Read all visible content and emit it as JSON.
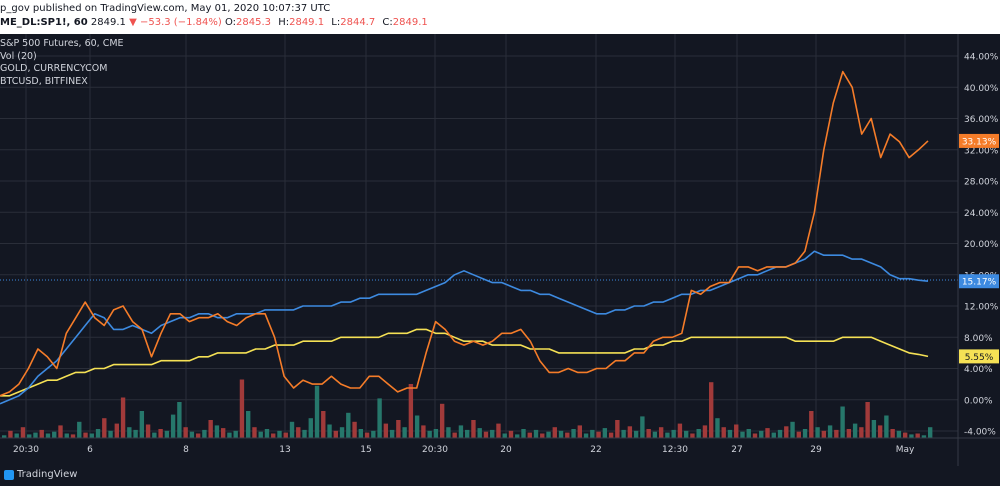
{
  "header": {
    "publisher_line": "p_gov published on TradingView.com, May 01, 2020 10:07:37 UTC",
    "symbol": "ME_DL:SP1!, 60",
    "last": "2849.1",
    "change_arrow": "▼",
    "change": "−53.3 (−1.84%)",
    "open_label": "O:",
    "open": "2845.3",
    "high_label": "H:",
    "high": "2849.1",
    "low_label": "L:",
    "low": "2844.7",
    "close_label": "C:",
    "close": "2849.1"
  },
  "legend": {
    "items": [
      "S&P 500 Futures, 60, CME",
      "Vol (20)",
      "GOLD, CURRENCYCOM",
      "BTCUSD, BITFINEX"
    ]
  },
  "footer": {
    "brand": "TradingView"
  },
  "colors": {
    "background": "#131722",
    "grid": "#2a2e39",
    "text": "#d1d4dc",
    "btc": "#f57c29",
    "sp500": "#3d8ae0",
    "gold": "#f5e155",
    "vol_up": "#26776b",
    "vol_down": "#a13a3a"
  },
  "chart_data": {
    "type": "line",
    "y_axis": {
      "ticks": [
        "44.00%",
        "40.00%",
        "36.00%",
        "32.00%",
        "28.00%",
        "24.00%",
        "20.00%",
        "16.00%",
        "12.00%",
        "8.00%",
        "4.00%",
        "0.00%",
        "-4.00%"
      ],
      "range_pct": [
        -5,
        46
      ]
    },
    "x_axis": {
      "ticks": [
        "20:30",
        "6",
        "8",
        "13",
        "15",
        "20:30",
        "20",
        "22",
        "12:30",
        "27",
        "29",
        "May"
      ]
    },
    "price_labels": {
      "btc": "33.13%",
      "sp500": "15.17%",
      "gold": "5.55%"
    },
    "series": [
      {
        "key": "btc",
        "pct": [
          0.5,
          1,
          2,
          4,
          6.5,
          5.5,
          4,
          8.5,
          10.5,
          12.5,
          10.5,
          9.5,
          11.5,
          12,
          10,
          9,
          5.5,
          8.5,
          11,
          11,
          10,
          10.5,
          10.5,
          11,
          10,
          9.5,
          10.5,
          11,
          11,
          8,
          3,
          1.5,
          2.5,
          2,
          2,
          3,
          2,
          1.5,
          1.5,
          3,
          3,
          2,
          1,
          1.5,
          1.5,
          6,
          10,
          9,
          7.5,
          7,
          7.5,
          7,
          7.5,
          8.5,
          8.5,
          9,
          7.5,
          5,
          3.5,
          3.5,
          4,
          3.5,
          3.5,
          4,
          4,
          5,
          5,
          6,
          6,
          7.5,
          8,
          8,
          8.5,
          14,
          13.5,
          14.5,
          15,
          15,
          17,
          17,
          16.5,
          17,
          17,
          17,
          17.5,
          19,
          24,
          32,
          38,
          42,
          40,
          34,
          36,
          31,
          34,
          33,
          31,
          32,
          33.13
        ]
      },
      {
        "key": "sp500",
        "pct": [
          -0.5,
          0,
          0.5,
          1.5,
          3,
          4,
          5,
          6.5,
          8,
          9.5,
          11,
          10.5,
          9,
          9,
          9.5,
          9,
          8.5,
          9.5,
          10,
          10.5,
          10.5,
          11,
          11,
          10.5,
          10.5,
          11,
          11,
          11,
          11.5,
          11.5,
          11.5,
          11.5,
          12,
          12,
          12,
          12,
          12.5,
          12.5,
          13,
          13,
          13.5,
          13.5,
          13.5,
          13.5,
          13.5,
          14,
          14.5,
          15,
          16,
          16.5,
          16,
          15.5,
          15,
          15,
          14.5,
          14,
          14,
          13.5,
          13.5,
          13,
          12.5,
          12,
          11.5,
          11,
          11,
          11.5,
          11.5,
          12,
          12,
          12.5,
          12.5,
          13,
          13.5,
          13.5,
          14,
          14,
          14.5,
          15,
          15.5,
          16,
          16,
          16.5,
          17,
          17,
          17.5,
          18,
          19,
          18.5,
          18.5,
          18.5,
          18,
          18,
          17.5,
          17,
          16,
          15.5,
          15.5,
          15.3,
          15.17
        ]
      },
      {
        "key": "gold",
        "pct": [
          0.5,
          0.5,
          1,
          1.5,
          2,
          2.5,
          2.5,
          3,
          3.5,
          3.5,
          4,
          4,
          4.5,
          4.5,
          4.5,
          4.5,
          4.5,
          5,
          5,
          5,
          5,
          5.5,
          5.5,
          6,
          6,
          6,
          6,
          6.5,
          6.5,
          7,
          7,
          7,
          7.5,
          7.5,
          7.5,
          7.5,
          8,
          8,
          8,
          8,
          8,
          8.5,
          8.5,
          8.5,
          9,
          9,
          8.5,
          8.5,
          8,
          7.5,
          7.5,
          7.5,
          7,
          7,
          7,
          7,
          6.5,
          6.5,
          6.5,
          6,
          6,
          6,
          6,
          6,
          6,
          6,
          6,
          6.5,
          6.5,
          7,
          7,
          7.5,
          7.5,
          8,
          8,
          8,
          8,
          8,
          8,
          8,
          8,
          8,
          8,
          8,
          7.5,
          7.5,
          7.5,
          7.5,
          7.5,
          8,
          8,
          8,
          8,
          7.5,
          7,
          6.5,
          6,
          5.8,
          5.55
        ]
      }
    ],
    "volume": [
      {
        "h": 3,
        "up": true
      },
      {
        "h": 8,
        "up": false
      },
      {
        "h": 5,
        "up": true
      },
      {
        "h": 12,
        "up": false
      },
      {
        "h": 4,
        "up": true
      },
      {
        "h": 6,
        "up": true
      },
      {
        "h": 9,
        "up": false
      },
      {
        "h": 5,
        "up": true
      },
      {
        "h": 7,
        "up": true
      },
      {
        "h": 14,
        "up": false
      },
      {
        "h": 5,
        "up": true
      },
      {
        "h": 4,
        "up": false
      },
      {
        "h": 18,
        "up": true
      },
      {
        "h": 6,
        "up": false
      },
      {
        "h": 5,
        "up": true
      },
      {
        "h": 10,
        "up": true
      },
      {
        "h": 22,
        "up": false
      },
      {
        "h": 8,
        "up": true
      },
      {
        "h": 16,
        "up": false
      },
      {
        "h": 45,
        "up": false
      },
      {
        "h": 12,
        "up": true
      },
      {
        "h": 9,
        "up": true
      },
      {
        "h": 30,
        "up": true
      },
      {
        "h": 15,
        "up": false
      },
      {
        "h": 6,
        "up": true
      },
      {
        "h": 10,
        "up": false
      },
      {
        "h": 8,
        "up": true
      },
      {
        "h": 26,
        "up": true
      },
      {
        "h": 40,
        "up": true
      },
      {
        "h": 12,
        "up": false
      },
      {
        "h": 7,
        "up": true
      },
      {
        "h": 5,
        "up": false
      },
      {
        "h": 9,
        "up": true
      },
      {
        "h": 20,
        "up": false
      },
      {
        "h": 14,
        "up": true
      },
      {
        "h": 11,
        "up": false
      },
      {
        "h": 6,
        "up": true
      },
      {
        "h": 8,
        "up": true
      },
      {
        "h": 65,
        "up": false
      },
      {
        "h": 30,
        "up": true
      },
      {
        "h": 12,
        "up": false
      },
      {
        "h": 7,
        "up": true
      },
      {
        "h": 10,
        "up": true
      },
      {
        "h": 5,
        "up": false
      },
      {
        "h": 8,
        "up": true
      },
      {
        "h": 6,
        "up": false
      },
      {
        "h": 18,
        "up": true
      },
      {
        "h": 12,
        "up": false
      },
      {
        "h": 9,
        "up": true
      },
      {
        "h": 22,
        "up": true
      },
      {
        "h": 58,
        "up": true
      },
      {
        "h": 30,
        "up": false
      },
      {
        "h": 15,
        "up": true
      },
      {
        "h": 8,
        "up": false
      },
      {
        "h": 12,
        "up": true
      },
      {
        "h": 28,
        "up": true
      },
      {
        "h": 18,
        "up": false
      },
      {
        "h": 10,
        "up": true
      },
      {
        "h": 6,
        "up": false
      },
      {
        "h": 8,
        "up": true
      },
      {
        "h": 44,
        "up": true
      },
      {
        "h": 16,
        "up": false
      },
      {
        "h": 9,
        "up": true
      },
      {
        "h": 20,
        "up": false
      },
      {
        "h": 12,
        "up": true
      },
      {
        "h": 60,
        "up": false
      },
      {
        "h": 25,
        "up": true
      },
      {
        "h": 14,
        "up": false
      },
      {
        "h": 8,
        "up": true
      },
      {
        "h": 10,
        "up": true
      },
      {
        "h": 38,
        "up": false
      },
      {
        "h": 12,
        "up": true
      },
      {
        "h": 6,
        "up": false
      },
      {
        "h": 14,
        "up": true
      },
      {
        "h": 9,
        "up": true
      },
      {
        "h": 20,
        "up": false
      },
      {
        "h": 11,
        "up": true
      },
      {
        "h": 7,
        "up": false
      },
      {
        "h": 9,
        "up": true
      },
      {
        "h": 16,
        "up": false
      },
      {
        "h": 5,
        "up": true
      },
      {
        "h": 8,
        "up": false
      },
      {
        "h": 4,
        "up": true
      },
      {
        "h": 10,
        "up": true
      },
      {
        "h": 6,
        "up": false
      },
      {
        "h": 9,
        "up": true
      },
      {
        "h": 5,
        "up": false
      },
      {
        "h": 7,
        "up": true
      },
      {
        "h": 12,
        "up": false
      },
      {
        "h": 8,
        "up": true
      },
      {
        "h": 6,
        "up": false
      },
      {
        "h": 10,
        "up": true
      },
      {
        "h": 14,
        "up": false
      },
      {
        "h": 5,
        "up": true
      },
      {
        "h": 9,
        "up": true
      },
      {
        "h": 7,
        "up": false
      },
      {
        "h": 11,
        "up": true
      },
      {
        "h": 6,
        "up": false
      },
      {
        "h": 20,
        "up": false
      },
      {
        "h": 9,
        "up": true
      },
      {
        "h": 13,
        "up": false
      },
      {
        "h": 8,
        "up": true
      },
      {
        "h": 24,
        "up": true
      },
      {
        "h": 10,
        "up": false
      },
      {
        "h": 7,
        "up": true
      },
      {
        "h": 12,
        "up": false
      },
      {
        "h": 6,
        "up": true
      },
      {
        "h": 9,
        "up": true
      },
      {
        "h": 16,
        "up": false
      },
      {
        "h": 8,
        "up": true
      },
      {
        "h": 5,
        "up": false
      },
      {
        "h": 10,
        "up": true
      },
      {
        "h": 14,
        "up": false
      },
      {
        "h": 62,
        "up": false
      },
      {
        "h": 22,
        "up": true
      },
      {
        "h": 12,
        "up": false
      },
      {
        "h": 9,
        "up": true
      },
      {
        "h": 15,
        "up": false
      },
      {
        "h": 7,
        "up": true
      },
      {
        "h": 10,
        "up": true
      },
      {
        "h": 5,
        "up": false
      },
      {
        "h": 8,
        "up": true
      },
      {
        "h": 11,
        "up": false
      },
      {
        "h": 6,
        "up": true
      },
      {
        "h": 9,
        "up": true
      },
      {
        "h": 13,
        "up": false
      },
      {
        "h": 18,
        "up": true
      },
      {
        "h": 7,
        "up": false
      },
      {
        "h": 10,
        "up": true
      },
      {
        "h": 30,
        "up": false
      },
      {
        "h": 12,
        "up": true
      },
      {
        "h": 8,
        "up": false
      },
      {
        "h": 14,
        "up": true
      },
      {
        "h": 9,
        "up": false
      },
      {
        "h": 35,
        "up": true
      },
      {
        "h": 10,
        "up": false
      },
      {
        "h": 16,
        "up": true
      },
      {
        "h": 12,
        "up": false
      },
      {
        "h": 40,
        "up": false
      },
      {
        "h": 20,
        "up": true
      },
      {
        "h": 14,
        "up": false
      },
      {
        "h": 25,
        "up": true
      },
      {
        "h": 10,
        "up": false
      },
      {
        "h": 8,
        "up": true
      },
      {
        "h": 6,
        "up": false
      },
      {
        "h": 4,
        "up": true
      },
      {
        "h": 5,
        "up": false
      },
      {
        "h": 3,
        "up": true
      },
      {
        "h": 12,
        "up": true
      }
    ]
  }
}
